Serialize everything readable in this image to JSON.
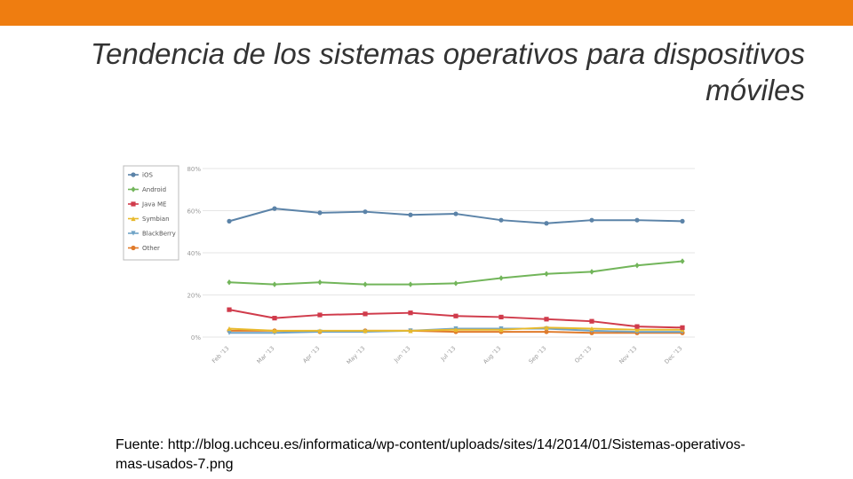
{
  "slide": {
    "title": "Tendencia de los sistemas operativos para dispositivos móviles",
    "caption": "Fuente: http://blog.uchceu.es/informatica/wp-content/uploads/sites/14/2014/01/Sistemas-operativos-mas-usados-7.png",
    "accent_color": "#ef7d10"
  },
  "chart_data": {
    "type": "line",
    "title": "",
    "xlabel": "",
    "ylabel": "",
    "ylim": [
      0,
      80
    ],
    "yticks": [
      "0%",
      "20%",
      "40%",
      "60%",
      "80%"
    ],
    "grid": true,
    "legend_position": "top-left",
    "categories": [
      "Feb '13",
      "Mar '13",
      "Apr '13",
      "May '13",
      "Jun '13",
      "Jul '13",
      "Aug '13",
      "Sep '13",
      "Oct '13",
      "Nov '13",
      "Dec '13"
    ],
    "series": [
      {
        "name": "iOS",
        "color": "#5b83a8",
        "marker": "circle",
        "values": [
          55,
          61,
          59,
          59.5,
          58,
          58.5,
          55.5,
          54,
          55.5,
          55.5,
          55
        ]
      },
      {
        "name": "Android",
        "color": "#72b55a",
        "marker": "diamond",
        "values": [
          26,
          25,
          26,
          25,
          25,
          25.5,
          28,
          30,
          31,
          34,
          36
        ]
      },
      {
        "name": "Java ME",
        "color": "#d03b4b",
        "marker": "square",
        "values": [
          13,
          9,
          10.5,
          11,
          11.5,
          10,
          9.5,
          8.5,
          7.5,
          5,
          4.5
        ]
      },
      {
        "name": "Symbian",
        "color": "#e8b92b",
        "marker": "triangle",
        "values": [
          4,
          3,
          3,
          3,
          3,
          3.5,
          3.5,
          4.5,
          4,
          3.5,
          3.5
        ]
      },
      {
        "name": "BlackBerry",
        "color": "#6fa3c6",
        "marker": "triangle-down",
        "values": [
          2,
          2,
          2.5,
          2.5,
          3,
          4,
          4,
          4,
          3,
          2.5,
          2.5
        ]
      },
      {
        "name": "Other",
        "color": "#e07b2b",
        "marker": "circle",
        "values": [
          3,
          3,
          2.5,
          3,
          3,
          2.5,
          2.5,
          2.5,
          2,
          2,
          2
        ]
      }
    ]
  }
}
